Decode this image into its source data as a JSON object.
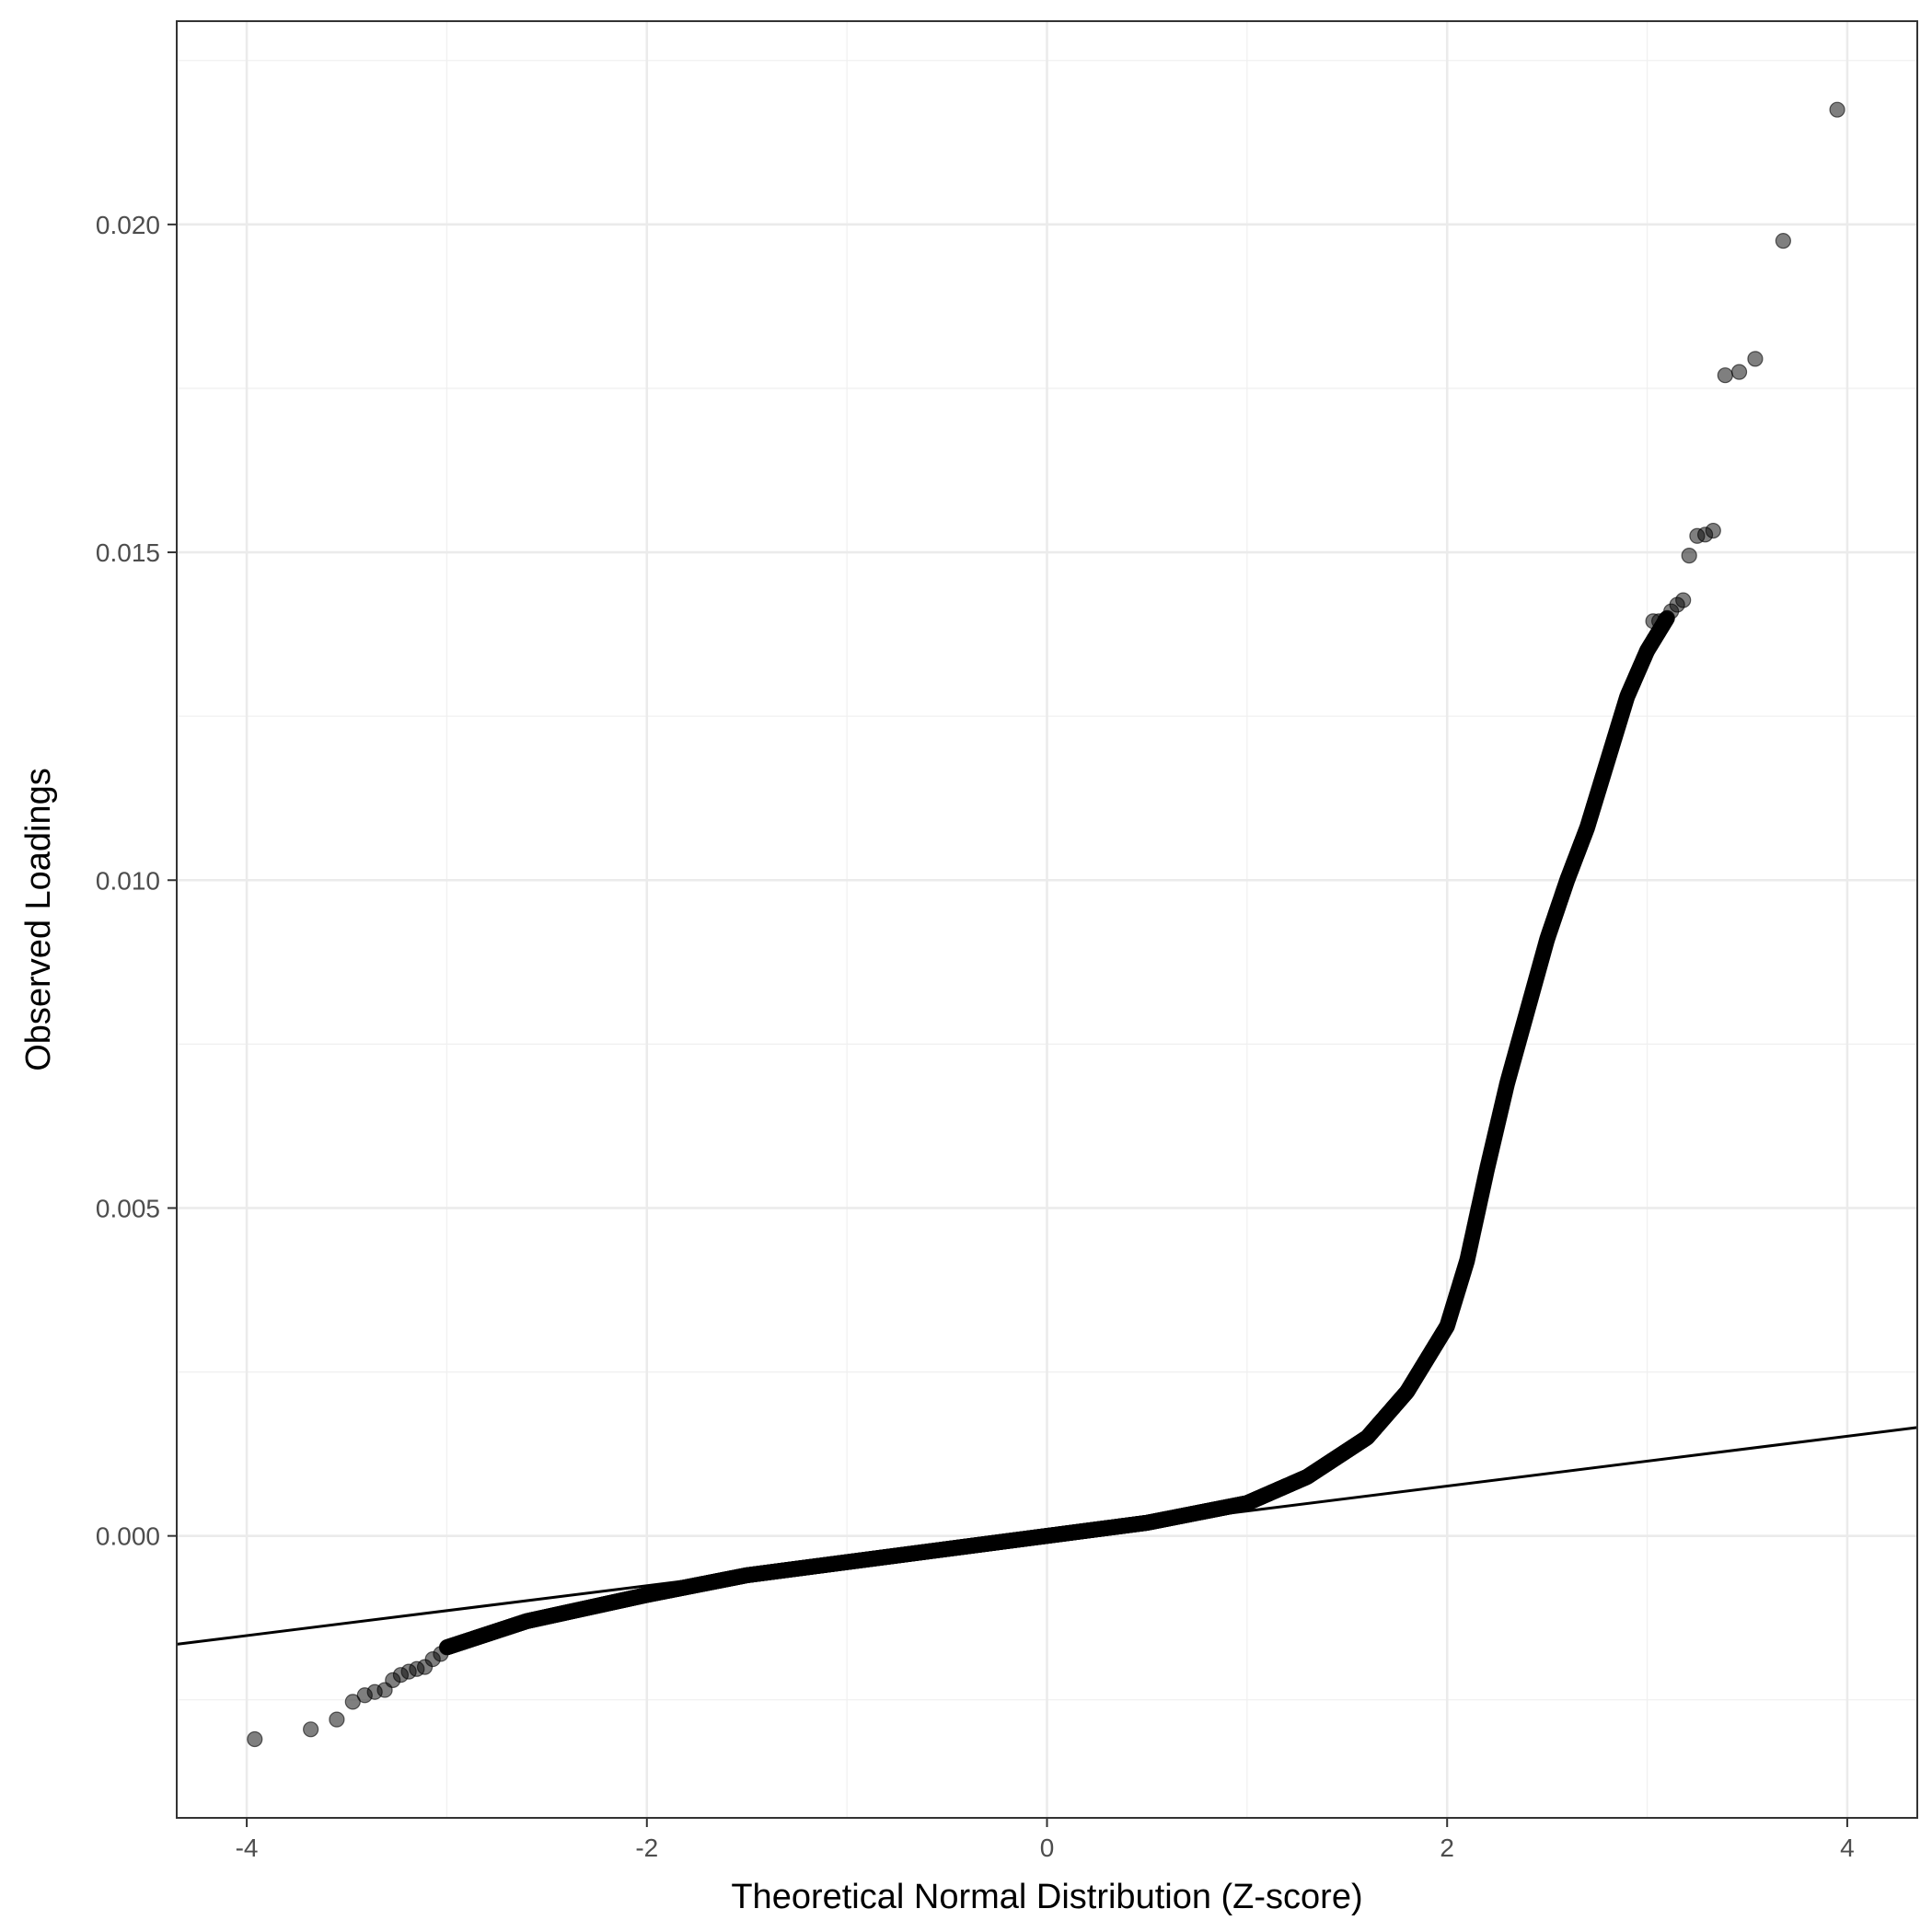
{
  "chart_data": {
    "type": "scatter",
    "title": "",
    "xlabel": "Theoretical Normal Distribution (Z-score)",
    "ylabel": "Observed Loadings",
    "xlim": [
      -4.35,
      4.35
    ],
    "ylim": [
      -0.0043,
      0.0231
    ],
    "x_ticks": [
      {
        "value": -4,
        "label": "-4"
      },
      {
        "value": -2,
        "label": "-2"
      },
      {
        "value": 0,
        "label": "0"
      },
      {
        "value": 2,
        "label": "2"
      },
      {
        "value": 4,
        "label": "4"
      }
    ],
    "y_ticks": [
      {
        "value": 0.0,
        "label": "0.000"
      },
      {
        "value": 0.005,
        "label": "0.005"
      },
      {
        "value": 0.01,
        "label": "0.010"
      },
      {
        "value": 0.015,
        "label": "0.015"
      },
      {
        "value": 0.02,
        "label": "0.020"
      }
    ],
    "grid": true,
    "reference_line": {
      "slope": 0.00038,
      "intercept": 0.0
    },
    "curve_shape": {
      "break_points": [
        [
          -3.0,
          -0.0017
        ],
        [
          -2.6,
          -0.0013
        ],
        [
          -2.0,
          -0.0009
        ],
        [
          -1.5,
          -0.0006
        ],
        [
          -1.0,
          -0.0004
        ],
        [
          -0.5,
          -0.0002
        ],
        [
          0.0,
          0.0
        ],
        [
          0.5,
          0.0002
        ],
        [
          1.0,
          0.0005
        ],
        [
          1.3,
          0.0009
        ],
        [
          1.6,
          0.0015
        ],
        [
          1.8,
          0.0022
        ],
        [
          2.0,
          0.0032
        ],
        [
          2.1,
          0.0042
        ],
        [
          2.2,
          0.0056
        ],
        [
          2.3,
          0.0069
        ],
        [
          2.4,
          0.008
        ],
        [
          2.5,
          0.0091
        ],
        [
          2.6,
          0.01
        ],
        [
          2.7,
          0.0108
        ],
        [
          2.8,
          0.0118
        ],
        [
          2.9,
          0.0128
        ],
        [
          3.0,
          0.0135
        ],
        [
          3.1,
          0.014
        ]
      ],
      "density": 4000
    },
    "outlier_points": [
      {
        "x": -3.96,
        "y": -0.0031
      },
      {
        "x": -3.68,
        "y": -0.00295
      },
      {
        "x": -3.55,
        "y": -0.0028
      },
      {
        "x": -3.47,
        "y": -0.00253
      },
      {
        "x": -3.41,
        "y": -0.00243
      },
      {
        "x": -3.36,
        "y": -0.00238
      },
      {
        "x": -3.31,
        "y": -0.00235
      },
      {
        "x": -3.27,
        "y": -0.0022
      },
      {
        "x": -3.23,
        "y": -0.00212
      },
      {
        "x": -3.19,
        "y": -0.00207
      },
      {
        "x": -3.15,
        "y": -0.00203
      },
      {
        "x": -3.11,
        "y": -0.002
      },
      {
        "x": -3.07,
        "y": -0.00188
      },
      {
        "x": -3.03,
        "y": -0.0018
      },
      {
        "x": 3.03,
        "y": 0.01395
      },
      {
        "x": 3.06,
        "y": 0.01395
      },
      {
        "x": 3.09,
        "y": 0.01397
      },
      {
        "x": 3.12,
        "y": 0.0141
      },
      {
        "x": 3.15,
        "y": 0.0142
      },
      {
        "x": 3.18,
        "y": 0.01427
      },
      {
        "x": 3.21,
        "y": 0.01495
      },
      {
        "x": 3.25,
        "y": 0.01525
      },
      {
        "x": 3.29,
        "y": 0.01527
      },
      {
        "x": 3.33,
        "y": 0.01533
      },
      {
        "x": 3.39,
        "y": 0.0177
      },
      {
        "x": 3.46,
        "y": 0.01775
      },
      {
        "x": 3.54,
        "y": 0.01795
      },
      {
        "x": 3.68,
        "y": 0.01975
      },
      {
        "x": 3.95,
        "y": 0.02175
      }
    ],
    "point_color": "#000000",
    "point_opacity": 0.5,
    "line_color": "#000000"
  }
}
